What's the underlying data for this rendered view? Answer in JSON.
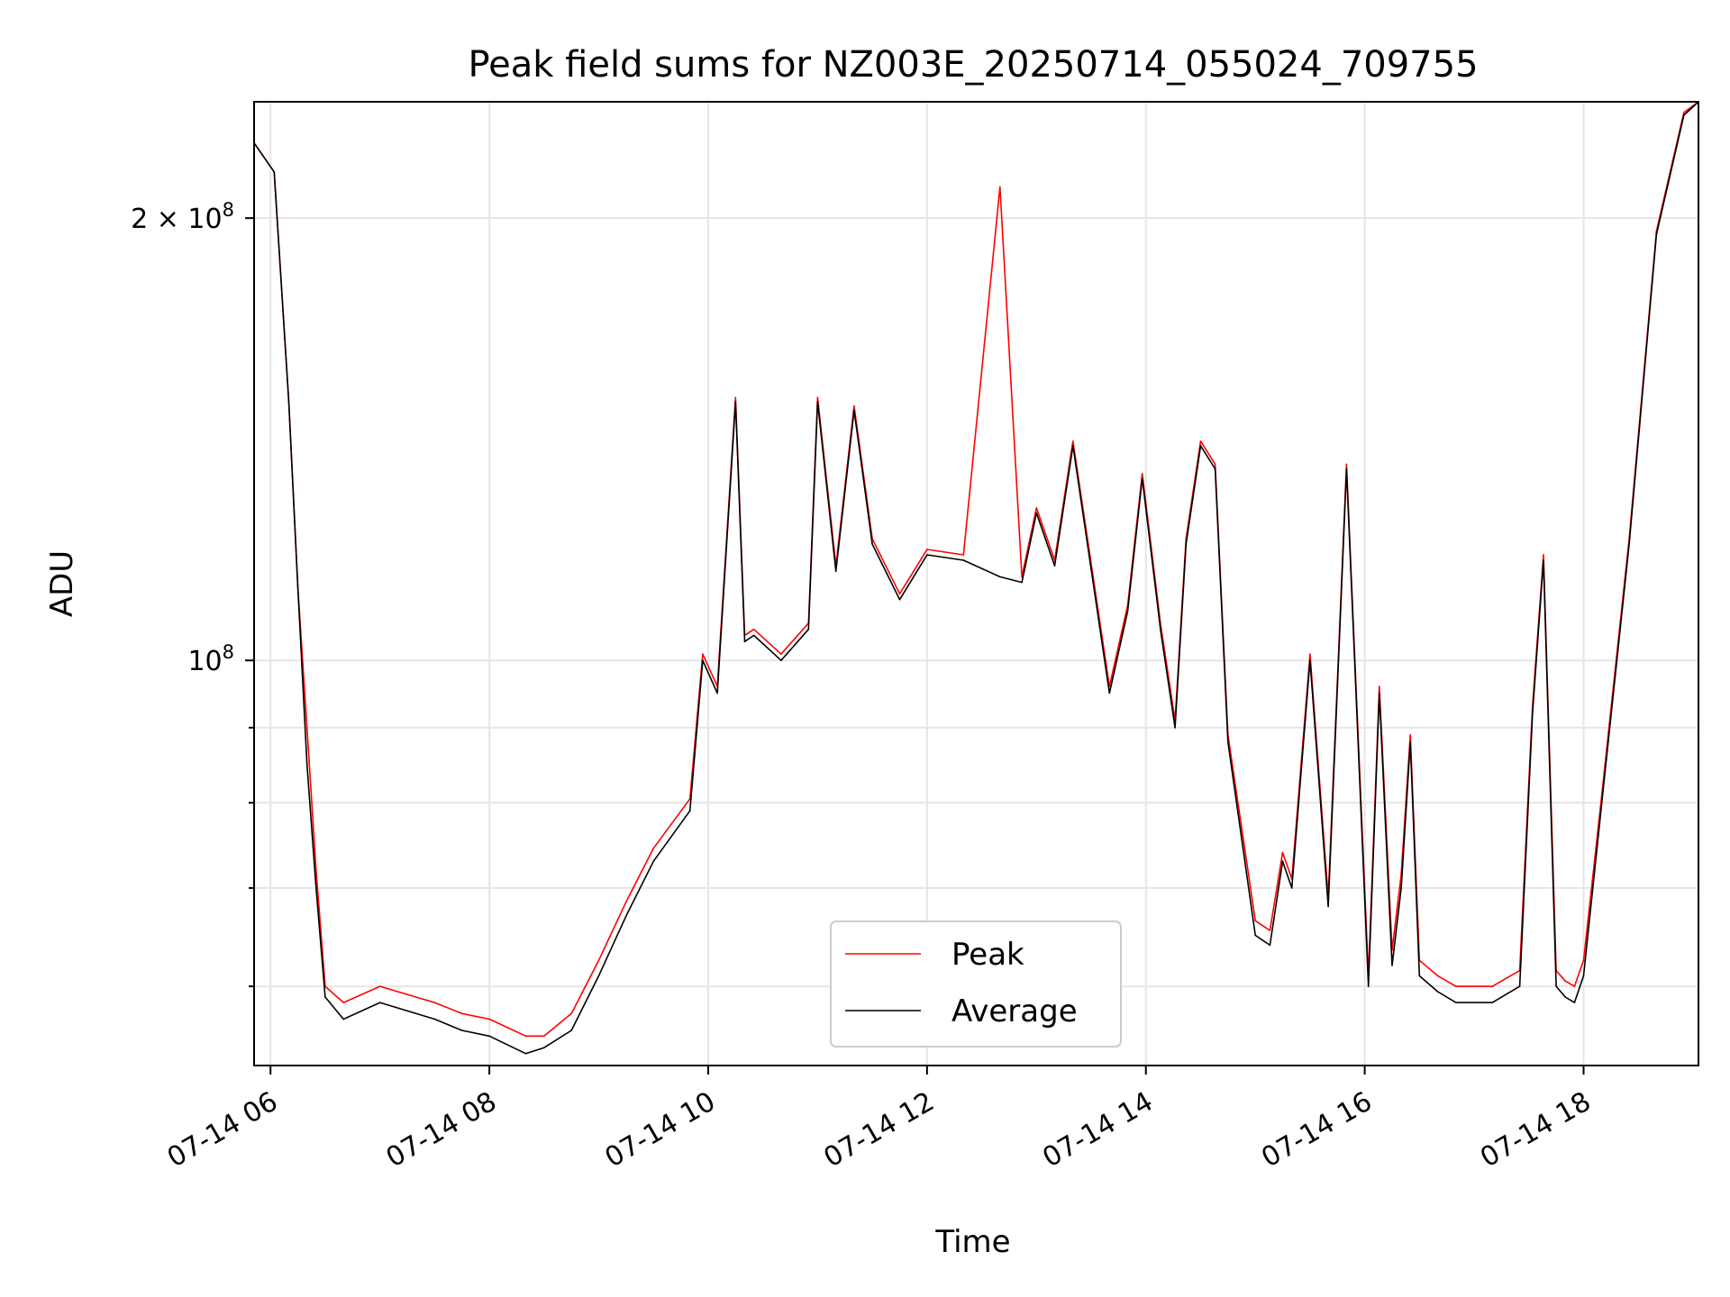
{
  "chart_data": {
    "type": "line",
    "title": "Peak field sums for NZ003E_20250714_055024_709755",
    "xlabel": "Time",
    "ylabel": "ADU",
    "y_scale": "log",
    "ylim": [
      53000000,
      240000000
    ],
    "xlim": [
      "07-14 05:51",
      "07-14 19:03"
    ],
    "grid": true,
    "legend_position": "lower-center",
    "x_ticks": [
      "07-14 06",
      "07-14 08",
      "07-14 10",
      "07-14 12",
      "07-14 14",
      "07-14 16",
      "07-14 18"
    ],
    "y_ticks": [
      "2 × 10^8",
      "10^8"
    ],
    "x": [
      "05:51",
      "06:02",
      "06:10",
      "06:15",
      "06:20",
      "06:25",
      "06:30",
      "06:40",
      "07:00",
      "07:30",
      "07:45",
      "08:00",
      "08:20",
      "08:30",
      "08:45",
      "09:00",
      "09:15",
      "09:30",
      "09:50",
      "09:57",
      "10:05",
      "10:15",
      "10:20",
      "10:25",
      "10:40",
      "10:55",
      "11:00",
      "11:10",
      "11:20",
      "11:30",
      "11:45",
      "12:00",
      "12:20",
      "12:40",
      "12:52",
      "13:00",
      "13:10",
      "13:20",
      "13:40",
      "13:50",
      "13:58",
      "14:08",
      "14:16",
      "14:22",
      "14:30",
      "14:38",
      "14:45",
      "15:00",
      "15:08",
      "15:15",
      "15:20",
      "15:30",
      "15:40",
      "15:50",
      "16:02",
      "16:08",
      "16:15",
      "16:20",
      "16:25",
      "16:30",
      "16:40",
      "16:50",
      "17:10",
      "17:25",
      "17:32",
      "17:38",
      "17:45",
      "17:50",
      "17:55",
      "18:00",
      "18:10",
      "18:25",
      "18:40",
      "18:55",
      "19:03"
    ],
    "series": [
      {
        "name": "Average",
        "color": "#000000",
        "values": [
          225000000,
          215000000,
          150000000,
          112000000,
          85000000,
          70000000,
          59000000,
          57000000,
          58500000,
          57000000,
          56000000,
          55500000,
          54000000,
          54500000,
          56000000,
          61000000,
          67000000,
          73000000,
          79000000,
          100000000,
          95000000,
          150000000,
          103000000,
          104000000,
          100000000,
          105000000,
          150000000,
          115000000,
          148000000,
          120000000,
          110000000,
          118000000,
          117000000,
          114000000,
          113000000,
          126000000,
          116000000,
          140000000,
          95000000,
          108000000,
          133000000,
          105000000,
          90000000,
          120000000,
          140000000,
          135000000,
          88000000,
          65000000,
          64000000,
          73000000,
          70000000,
          100000000,
          68000000,
          135000000,
          60000000,
          95000000,
          62000000,
          70000000,
          88000000,
          61000000,
          59500000,
          58500000,
          58500000,
          60000000,
          92000000,
          117000000,
          60000000,
          59000000,
          58500000,
          61000000,
          80000000,
          120000000,
          195000000,
          235000000,
          240000000
        ]
      },
      {
        "name": "Peak",
        "color": "#ff0000",
        "values": [
          225000000,
          215000000,
          150000000,
          112000000,
          90000000,
          72000000,
          60000000,
          58500000,
          60000000,
          58500000,
          57500000,
          57000000,
          55500000,
          55500000,
          57500000,
          62500000,
          68500000,
          74500000,
          80500000,
          101000000,
          96000000,
          151000000,
          104000000,
          105000000,
          101000000,
          106000000,
          151000000,
          116000000,
          149000000,
          121000000,
          111000000,
          119000000,
          118000000,
          210000000,
          114000000,
          127000000,
          117000000,
          141000000,
          96000000,
          109000000,
          134000000,
          106000000,
          91000000,
          121000000,
          141000000,
          136000000,
          89000000,
          66500000,
          65500000,
          74000000,
          71000000,
          101000000,
          69000000,
          136000000,
          61000000,
          96000000,
          63500000,
          71500000,
          89000000,
          62500000,
          61000000,
          60000000,
          60000000,
          61500000,
          93000000,
          118000000,
          61500000,
          60500000,
          60000000,
          62500000,
          81000000,
          121000000,
          196000000,
          236000000,
          240000000
        ]
      }
    ]
  }
}
